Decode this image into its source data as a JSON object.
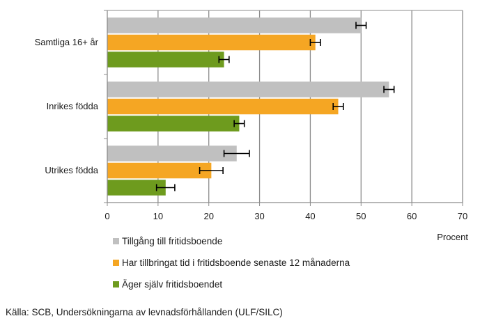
{
  "chart_data": {
    "type": "bar",
    "orientation": "horizontal",
    "categories": [
      "Samtliga 16+ år",
      "Inrikes födda",
      "Utrikes födda"
    ],
    "series": [
      {
        "name": "Tillgång till fritidsboende",
        "color": "#c0c0c0",
        "values": [
          50,
          55.5,
          25.5
        ],
        "errors": [
          1,
          1,
          2.5
        ]
      },
      {
        "name": "Har tillbringat tid i fritidsboende senaste 12 månaderna",
        "color": "#f5a623",
        "values": [
          41,
          45.5,
          20.5
        ],
        "errors": [
          1,
          1,
          2.3
        ]
      },
      {
        "name": "Äger själv fritidsboendet",
        "color": "#6e9b1e",
        "values": [
          23,
          26,
          11.5
        ],
        "errors": [
          1,
          1,
          1.8
        ]
      }
    ],
    "xlim": [
      0,
      70
    ],
    "xticks": [
      0,
      10,
      20,
      30,
      40,
      50,
      60,
      70
    ],
    "xlabel": "Procent",
    "grid": true,
    "legend": "bottom"
  },
  "source": "Källa: SCB, Undersökningarna av levnadsförhållanden (ULF/SILC)"
}
